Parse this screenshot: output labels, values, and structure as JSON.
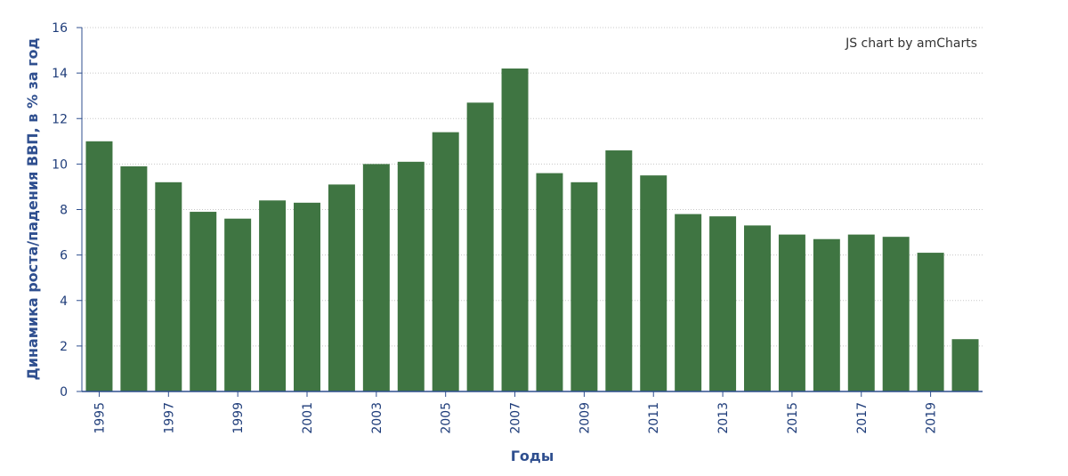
{
  "chart_data": {
    "type": "bar",
    "categories": [
      "1995",
      "1996",
      "1997",
      "1998",
      "1999",
      "2000",
      "2001",
      "2002",
      "2003",
      "2004",
      "2005",
      "2006",
      "2007",
      "2008",
      "2009",
      "2010",
      "2011",
      "2012",
      "2013",
      "2014",
      "2015",
      "2016",
      "2017",
      "2018",
      "2019",
      "2020"
    ],
    "values": [
      11.0,
      9.9,
      9.2,
      7.9,
      7.6,
      8.4,
      8.3,
      9.1,
      10.0,
      10.1,
      11.4,
      12.7,
      14.2,
      9.6,
      9.2,
      10.6,
      9.5,
      7.8,
      7.7,
      7.3,
      6.9,
      6.7,
      6.9,
      6.8,
      6.1,
      2.3
    ],
    "x_tick_labels": [
      "1995",
      "1997",
      "1999",
      "2001",
      "2003",
      "2005",
      "2007",
      "2009",
      "2011",
      "2013",
      "2015",
      "2017",
      "2019"
    ],
    "y_ticks": [
      0,
      2,
      4,
      6,
      8,
      10,
      12,
      14,
      16
    ],
    "ylim": [
      0,
      16
    ],
    "xlabel": "Годы",
    "ylabel": "Динамика роста/падения ВВП, в % за год",
    "credit": "JS chart by amCharts",
    "grid": true,
    "bar_color": "#3f7542",
    "axis_color": "#2f4f8f"
  }
}
